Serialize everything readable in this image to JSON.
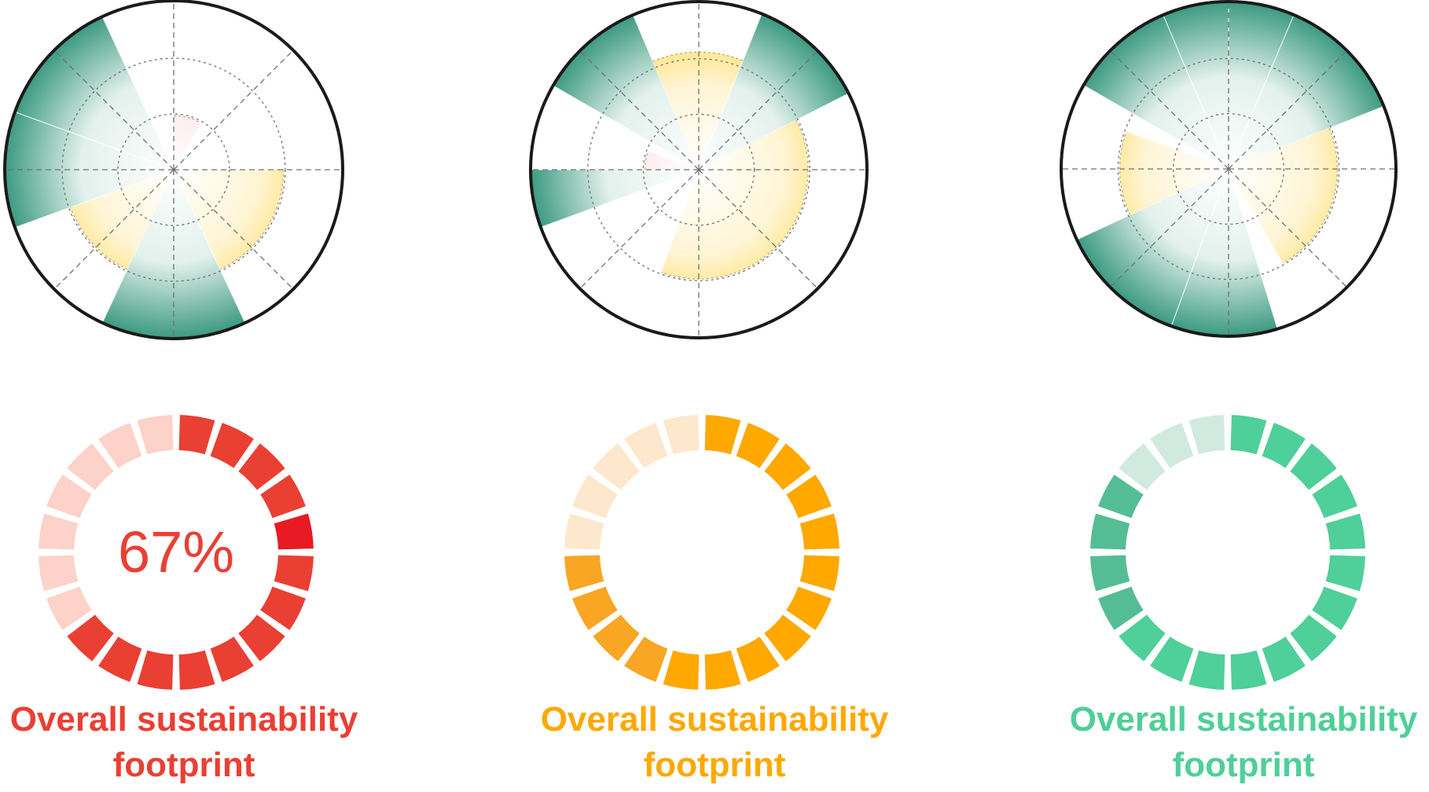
{
  "colors": {
    "green_sector": "#3c9a80",
    "yellow_sector": "#ffd335",
    "red_sector": "#ec4f69",
    "guide": "#707070",
    "outline": "#1a1a1a"
  },
  "chart_data": [
    {
      "type": "polar-area",
      "scale": "relative radius 0-1, outer ring = 1",
      "grid": true,
      "sectors": [
        {
          "start_deg": 0,
          "end_deg": 30,
          "radius": 0.32,
          "color": "red"
        },
        {
          "start_deg": 30,
          "end_deg": 90,
          "radius": 0,
          "color": "none"
        },
        {
          "start_deg": 90,
          "end_deg": 110,
          "radius": 0.65,
          "color": "yellow"
        },
        {
          "start_deg": 110,
          "end_deg": 155,
          "radius": 0.65,
          "color": "yellow"
        },
        {
          "start_deg": 155,
          "end_deg": 205,
          "radius": 1.0,
          "color": "green"
        },
        {
          "start_deg": 205,
          "end_deg": 250,
          "radius": 0.65,
          "color": "yellow"
        },
        {
          "start_deg": 250,
          "end_deg": 290,
          "radius": 1.0,
          "color": "green"
        },
        {
          "start_deg": 290,
          "end_deg": 335,
          "radius": 1.0,
          "color": "green"
        },
        {
          "start_deg": 335,
          "end_deg": 360,
          "radius": 0,
          "color": "none"
        }
      ]
    },
    {
      "type": "polar-area",
      "scale": "relative radius 0-1, outer ring = 1",
      "grid": true,
      "sectors": [
        {
          "start_deg": 0,
          "end_deg": 22,
          "radius": 0.7,
          "color": "yellow"
        },
        {
          "start_deg": 22,
          "end_deg": 63,
          "radius": 1.0,
          "color": "green"
        },
        {
          "start_deg": 63,
          "end_deg": 110,
          "radius": 0.65,
          "color": "yellow"
        },
        {
          "start_deg": 110,
          "end_deg": 155,
          "radius": 0.65,
          "color": "yellow"
        },
        {
          "start_deg": 155,
          "end_deg": 200,
          "radius": 0.65,
          "color": "yellow"
        },
        {
          "start_deg": 200,
          "end_deg": 250,
          "radius": 0,
          "color": "none"
        },
        {
          "start_deg": 250,
          "end_deg": 270,
          "radius": 1.0,
          "color": "green"
        },
        {
          "start_deg": 270,
          "end_deg": 290,
          "radius": 0.32,
          "color": "red"
        },
        {
          "start_deg": 290,
          "end_deg": 300,
          "radius": 0,
          "color": "none"
        },
        {
          "start_deg": 300,
          "end_deg": 337,
          "radius": 1.0,
          "color": "green"
        },
        {
          "start_deg": 337,
          "end_deg": 360,
          "radius": 0.7,
          "color": "yellow"
        }
      ]
    },
    {
      "type": "polar-area",
      "scale": "relative radius 0-1, outer ring = 1",
      "grid": true,
      "sectors": [
        {
          "start_deg": 0,
          "end_deg": 23,
          "radius": 1.0,
          "color": "green"
        },
        {
          "start_deg": 23,
          "end_deg": 68,
          "radius": 1.0,
          "color": "green"
        },
        {
          "start_deg": 68,
          "end_deg": 110,
          "radius": 0.65,
          "color": "yellow"
        },
        {
          "start_deg": 110,
          "end_deg": 150,
          "radius": 0.65,
          "color": "yellow"
        },
        {
          "start_deg": 150,
          "end_deg": 163,
          "radius": 0,
          "color": "none"
        },
        {
          "start_deg": 163,
          "end_deg": 200,
          "radius": 1.0,
          "color": "green"
        },
        {
          "start_deg": 200,
          "end_deg": 245,
          "radius": 1.0,
          "color": "green"
        },
        {
          "start_deg": 245,
          "end_deg": 255,
          "radius": 0.65,
          "color": "yellow"
        },
        {
          "start_deg": 255,
          "end_deg": 290,
          "radius": 0.65,
          "color": "yellow"
        },
        {
          "start_deg": 290,
          "end_deg": 300,
          "radius": 0,
          "color": "none"
        },
        {
          "start_deg": 300,
          "end_deg": 337,
          "radius": 1.0,
          "color": "green"
        },
        {
          "start_deg": 337,
          "end_deg": 360,
          "radius": 1.0,
          "color": "green"
        }
      ]
    },
    {
      "type": "segmented-ring",
      "value_percent": 67,
      "center_label": "67%",
      "segments_total": 20,
      "filled_color": "#ea3f33",
      "peak_color": "#e81b24",
      "empty_color": "#fdd2c8",
      "caption": [
        "Overall sustainability",
        "footprint"
      ],
      "caption_color": "#ea3f33"
    },
    {
      "type": "segmented-ring",
      "value_percent": 75,
      "center_label": "",
      "segments_total": 20,
      "filled_color": "#ffa800",
      "alt_color": "#f8a623",
      "empty_color": "#fde8cd",
      "caption": [
        "Overall sustainability",
        "footprint"
      ],
      "caption_color": "#ffa800"
    },
    {
      "type": "segmented-ring",
      "value_percent": 85,
      "center_label": "",
      "segments_total": 20,
      "filled_color": "#4fcf99",
      "alt_color": "#55bd95",
      "empty_color": "#d1eadf",
      "caption": [
        "Overall sustainability",
        "footprint"
      ],
      "caption_color": "#4fcf99"
    }
  ]
}
